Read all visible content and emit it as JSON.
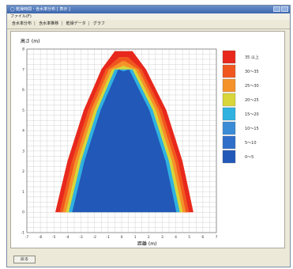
{
  "window": {
    "title": "◯ 乾燥時間・含水率分布 [ 表示 ]",
    "menu": "ファイル(F)"
  },
  "tabs": [
    "含水率分布",
    "含水率推移",
    "乾燥データ",
    "グラフ"
  ],
  "footer": {
    "button_label": "戻る"
  },
  "chart_data": {
    "type": "heatmap",
    "ylabel": "高さ (m)",
    "xlabel": "距離 (m)",
    "xlim": [
      -7,
      7
    ],
    "ylim": [
      -1,
      8
    ],
    "xticks": [
      -7,
      -6,
      -5,
      -4,
      -3,
      -2,
      -1,
      0,
      1,
      2,
      3,
      4,
      5,
      6,
      7
    ],
    "yticks": [
      -1,
      0,
      1,
      2,
      3,
      4,
      5,
      6,
      7,
      8
    ],
    "legend": {
      "placement": "right",
      "entries": [
        {
          "label": "35 以上",
          "color": "#e8281c"
        },
        {
          "label": "30～35",
          "color": "#f0571f"
        },
        {
          "label": "25～30",
          "color": "#f5922a"
        },
        {
          "label": "20～25",
          "color": "#d8d63a"
        },
        {
          "label": "15～20",
          "color": "#2fb2e0"
        },
        {
          "label": "10～15",
          "color": "#3a8cd6"
        },
        {
          "label": "5～10",
          "color": "#2f6fca"
        },
        {
          "label": "0～5",
          "color": "#2258b8"
        }
      ]
    },
    "region": {
      "left_edge": [
        [
          -4.9,
          0.0
        ],
        [
          -4.0,
          2.5
        ],
        [
          -2.8,
          5.0
        ],
        [
          -1.5,
          7.0
        ],
        [
          -0.5,
          7.9
        ]
      ],
      "right_edge": [
        [
          0.8,
          7.9
        ],
        [
          1.8,
          7.0
        ],
        [
          3.3,
          5.0
        ],
        [
          4.5,
          2.5
        ],
        [
          5.3,
          0.0
        ]
      ],
      "band_levels": [
        35,
        30,
        25,
        20,
        15,
        10
      ]
    }
  }
}
